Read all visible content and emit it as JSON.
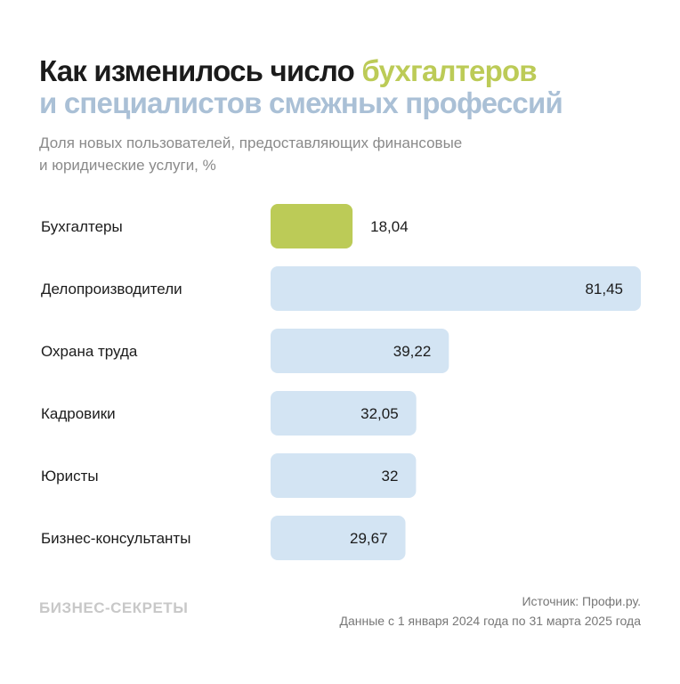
{
  "title": {
    "part1": "Как изменилось число ",
    "part2": "бухгалтеров",
    "part3": "и специалистов смежных профессий"
  },
  "subtitle": {
    "line1": "Доля новых пользователей, предоставляющих финансовые",
    "line2": "и юридические услуги, %"
  },
  "footer": {
    "logo": "БИЗНЕС-СЕКРЕТЫ",
    "source": "Источник: Профи.ру.",
    "period": "Данные с 1 января 2024 года по 31 марта 2025 года"
  },
  "colors": {
    "highlight": "#bccb57",
    "bar": "#d3e4f3",
    "title_blue": "#aac0d6"
  },
  "chart_data": {
    "type": "bar",
    "orientation": "horizontal",
    "categories": [
      "Бухгалтеры",
      "Делопроизводители",
      "Охрана труда",
      "Кадровики",
      "Юристы",
      "Бизнес-консультанты"
    ],
    "values": [
      18.04,
      81.45,
      39.22,
      32.05,
      32,
      29.67
    ],
    "value_labels": [
      "18,04",
      "81,45",
      "39,22",
      "32,05",
      "32",
      "29,67"
    ],
    "highlighted": [
      "Бухгалтеры"
    ],
    "unit": "%",
    "grid": false
  }
}
